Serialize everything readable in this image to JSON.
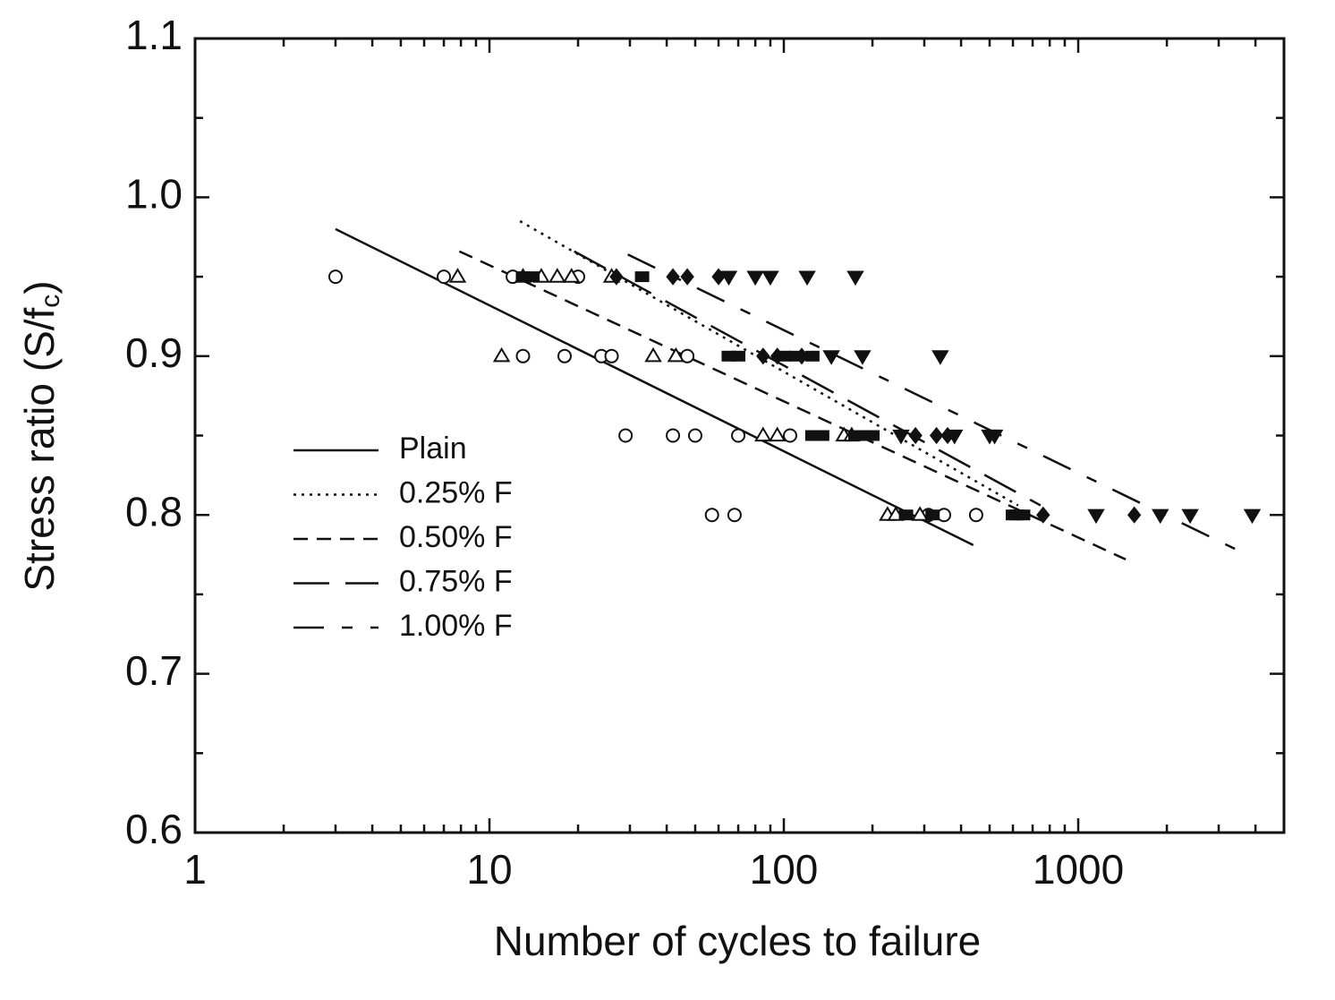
{
  "chart_data": {
    "type": "line",
    "xlabel": "Number of cycles to failure",
    "ylabel": {
      "text": "Stress ratio (S/f",
      "subscript": "c",
      "suffix": ")"
    },
    "xscale": "log",
    "xlim": [
      1,
      5000
    ],
    "ylim": [
      0.6,
      1.1
    ],
    "xticks": [
      1,
      10,
      100,
      1000
    ],
    "yticks": [
      0.6,
      0.7,
      0.8,
      0.9,
      {
        "value": 1,
        "label": "1.0"
      },
      1.1
    ],
    "xminorticks": [
      2,
      3,
      4,
      5,
      6,
      7,
      8,
      9,
      20,
      30,
      40,
      50,
      60,
      70,
      80,
      90,
      200,
      300,
      400,
      500,
      600,
      700,
      800,
      900,
      2000,
      3000,
      4000
    ],
    "yminorticks": [
      0.65,
      0.75,
      0.85,
      0.95,
      1.05
    ],
    "legend": "center left",
    "color": "#111111",
    "series": [
      {
        "name": "Plain",
        "style": "solid",
        "x": [
          3,
          440
        ],
        "values": [
          0.98,
          0.781
        ]
      },
      {
        "name": "0.25%  F",
        "style": "dotted",
        "x": [
          12.7,
          625
        ],
        "values": [
          0.985,
          0.806
        ]
      },
      {
        "name": "0.50%  F",
        "style": "dashed",
        "x": [
          7.9,
          1450
        ],
        "values": [
          0.966,
          0.772
        ]
      },
      {
        "name": "0.75%  F",
        "style": "long-dashed",
        "x": [
          19.4,
          745
        ],
        "values": [
          0.966,
          0.806
        ]
      },
      {
        "name": "1.00%  F",
        "style": "dash-dot",
        "x": [
          29.5,
          3740
        ],
        "values": [
          0.964,
          0.775
        ]
      }
    ],
    "markers": [
      {
        "shape": "circle",
        "x": [
          3,
          7,
          12,
          20,
          13,
          18,
          24,
          26,
          47,
          29,
          42,
          50,
          70,
          105,
          57,
          68,
          310,
          350,
          450
        ],
        "values": [
          0.95,
          0.95,
          0.95,
          0.95,
          0.9,
          0.9,
          0.9,
          0.9,
          0.9,
          0.85,
          0.85,
          0.85,
          0.85,
          0.85,
          0.8,
          0.8,
          0.8,
          0.8,
          0.8
        ]
      },
      {
        "shape": "triangle",
        "x": [
          7.8,
          13,
          15,
          17,
          19,
          26,
          11,
          36,
          43,
          85,
          95,
          160,
          170,
          225,
          240,
          290
        ],
        "values": [
          0.95,
          0.95,
          0.95,
          0.95,
          0.95,
          0.95,
          0.9,
          0.9,
          0.9,
          0.85,
          0.85,
          0.85,
          0.85,
          0.8,
          0.8,
          0.8
        ]
      },
      {
        "shape": "square",
        "x": [
          13,
          14,
          33,
          65,
          70,
          100,
          110,
          125,
          125,
          135,
          175,
          190,
          200,
          260,
          320,
          600,
          620,
          650
        ],
        "values": [
          0.95,
          0.95,
          0.95,
          0.9,
          0.9,
          0.9,
          0.9,
          0.9,
          0.85,
          0.85,
          0.85,
          0.85,
          0.85,
          0.8,
          0.8,
          0.8,
          0.8,
          0.8
        ]
      },
      {
        "shape": "diamond",
        "x": [
          27,
          42,
          47,
          60,
          85,
          95,
          115,
          280,
          330,
          360,
          760,
          1550
        ],
        "values": [
          0.95,
          0.95,
          0.95,
          0.95,
          0.9,
          0.9,
          0.9,
          0.85,
          0.85,
          0.85,
          0.8,
          0.8
        ]
      },
      {
        "shape": "inverted-triangle",
        "x": [
          65,
          80,
          90,
          120,
          175,
          145,
          185,
          340,
          250,
          380,
          500,
          520,
          1150,
          1900,
          2400,
          3900
        ],
        "values": [
          0.95,
          0.95,
          0.95,
          0.95,
          0.95,
          0.9,
          0.9,
          0.9,
          0.85,
          0.85,
          0.85,
          0.85,
          0.8,
          0.8,
          0.8,
          0.8
        ]
      }
    ]
  }
}
